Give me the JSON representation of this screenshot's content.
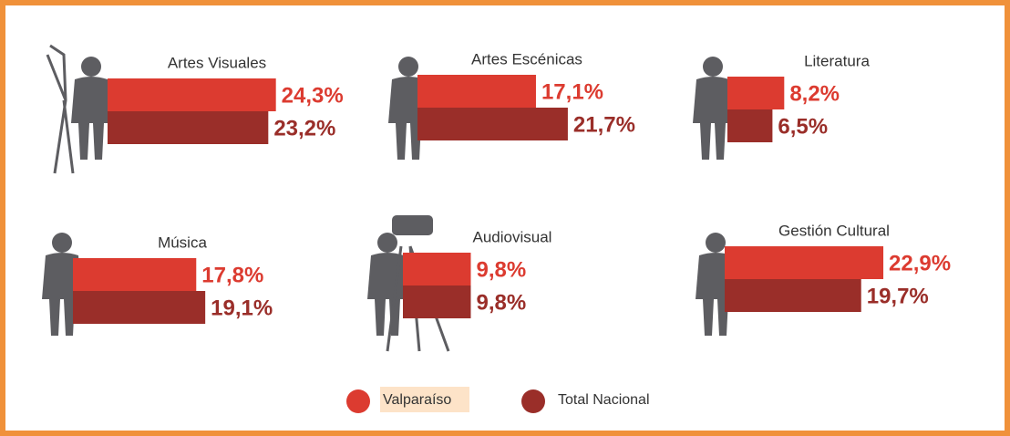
{
  "chart_data": {
    "type": "bar",
    "categories": [
      "Artes Visuales",
      "Artes Escénicas",
      "Literatura",
      "Música",
      "Audiovisual",
      "Gestión Cultural"
    ],
    "series": [
      {
        "name": "Valparaíso",
        "color": "#dc3b30",
        "values": [
          24.3,
          17.1,
          8.2,
          17.8,
          9.8,
          22.9
        ],
        "value_labels": [
          "24,3%",
          "17,1%",
          "8,2%",
          "17,8%",
          "9,8%",
          "22,9%"
        ]
      },
      {
        "name": "Total Nacional",
        "color": "#9a2e29",
        "values": [
          23.2,
          21.7,
          6.5,
          19.1,
          9.8,
          19.7
        ],
        "value_labels": [
          "23,2%",
          "21,7%",
          "6,5%",
          "19,1%",
          "9,8%",
          "19,7%"
        ]
      }
    ]
  }
}
